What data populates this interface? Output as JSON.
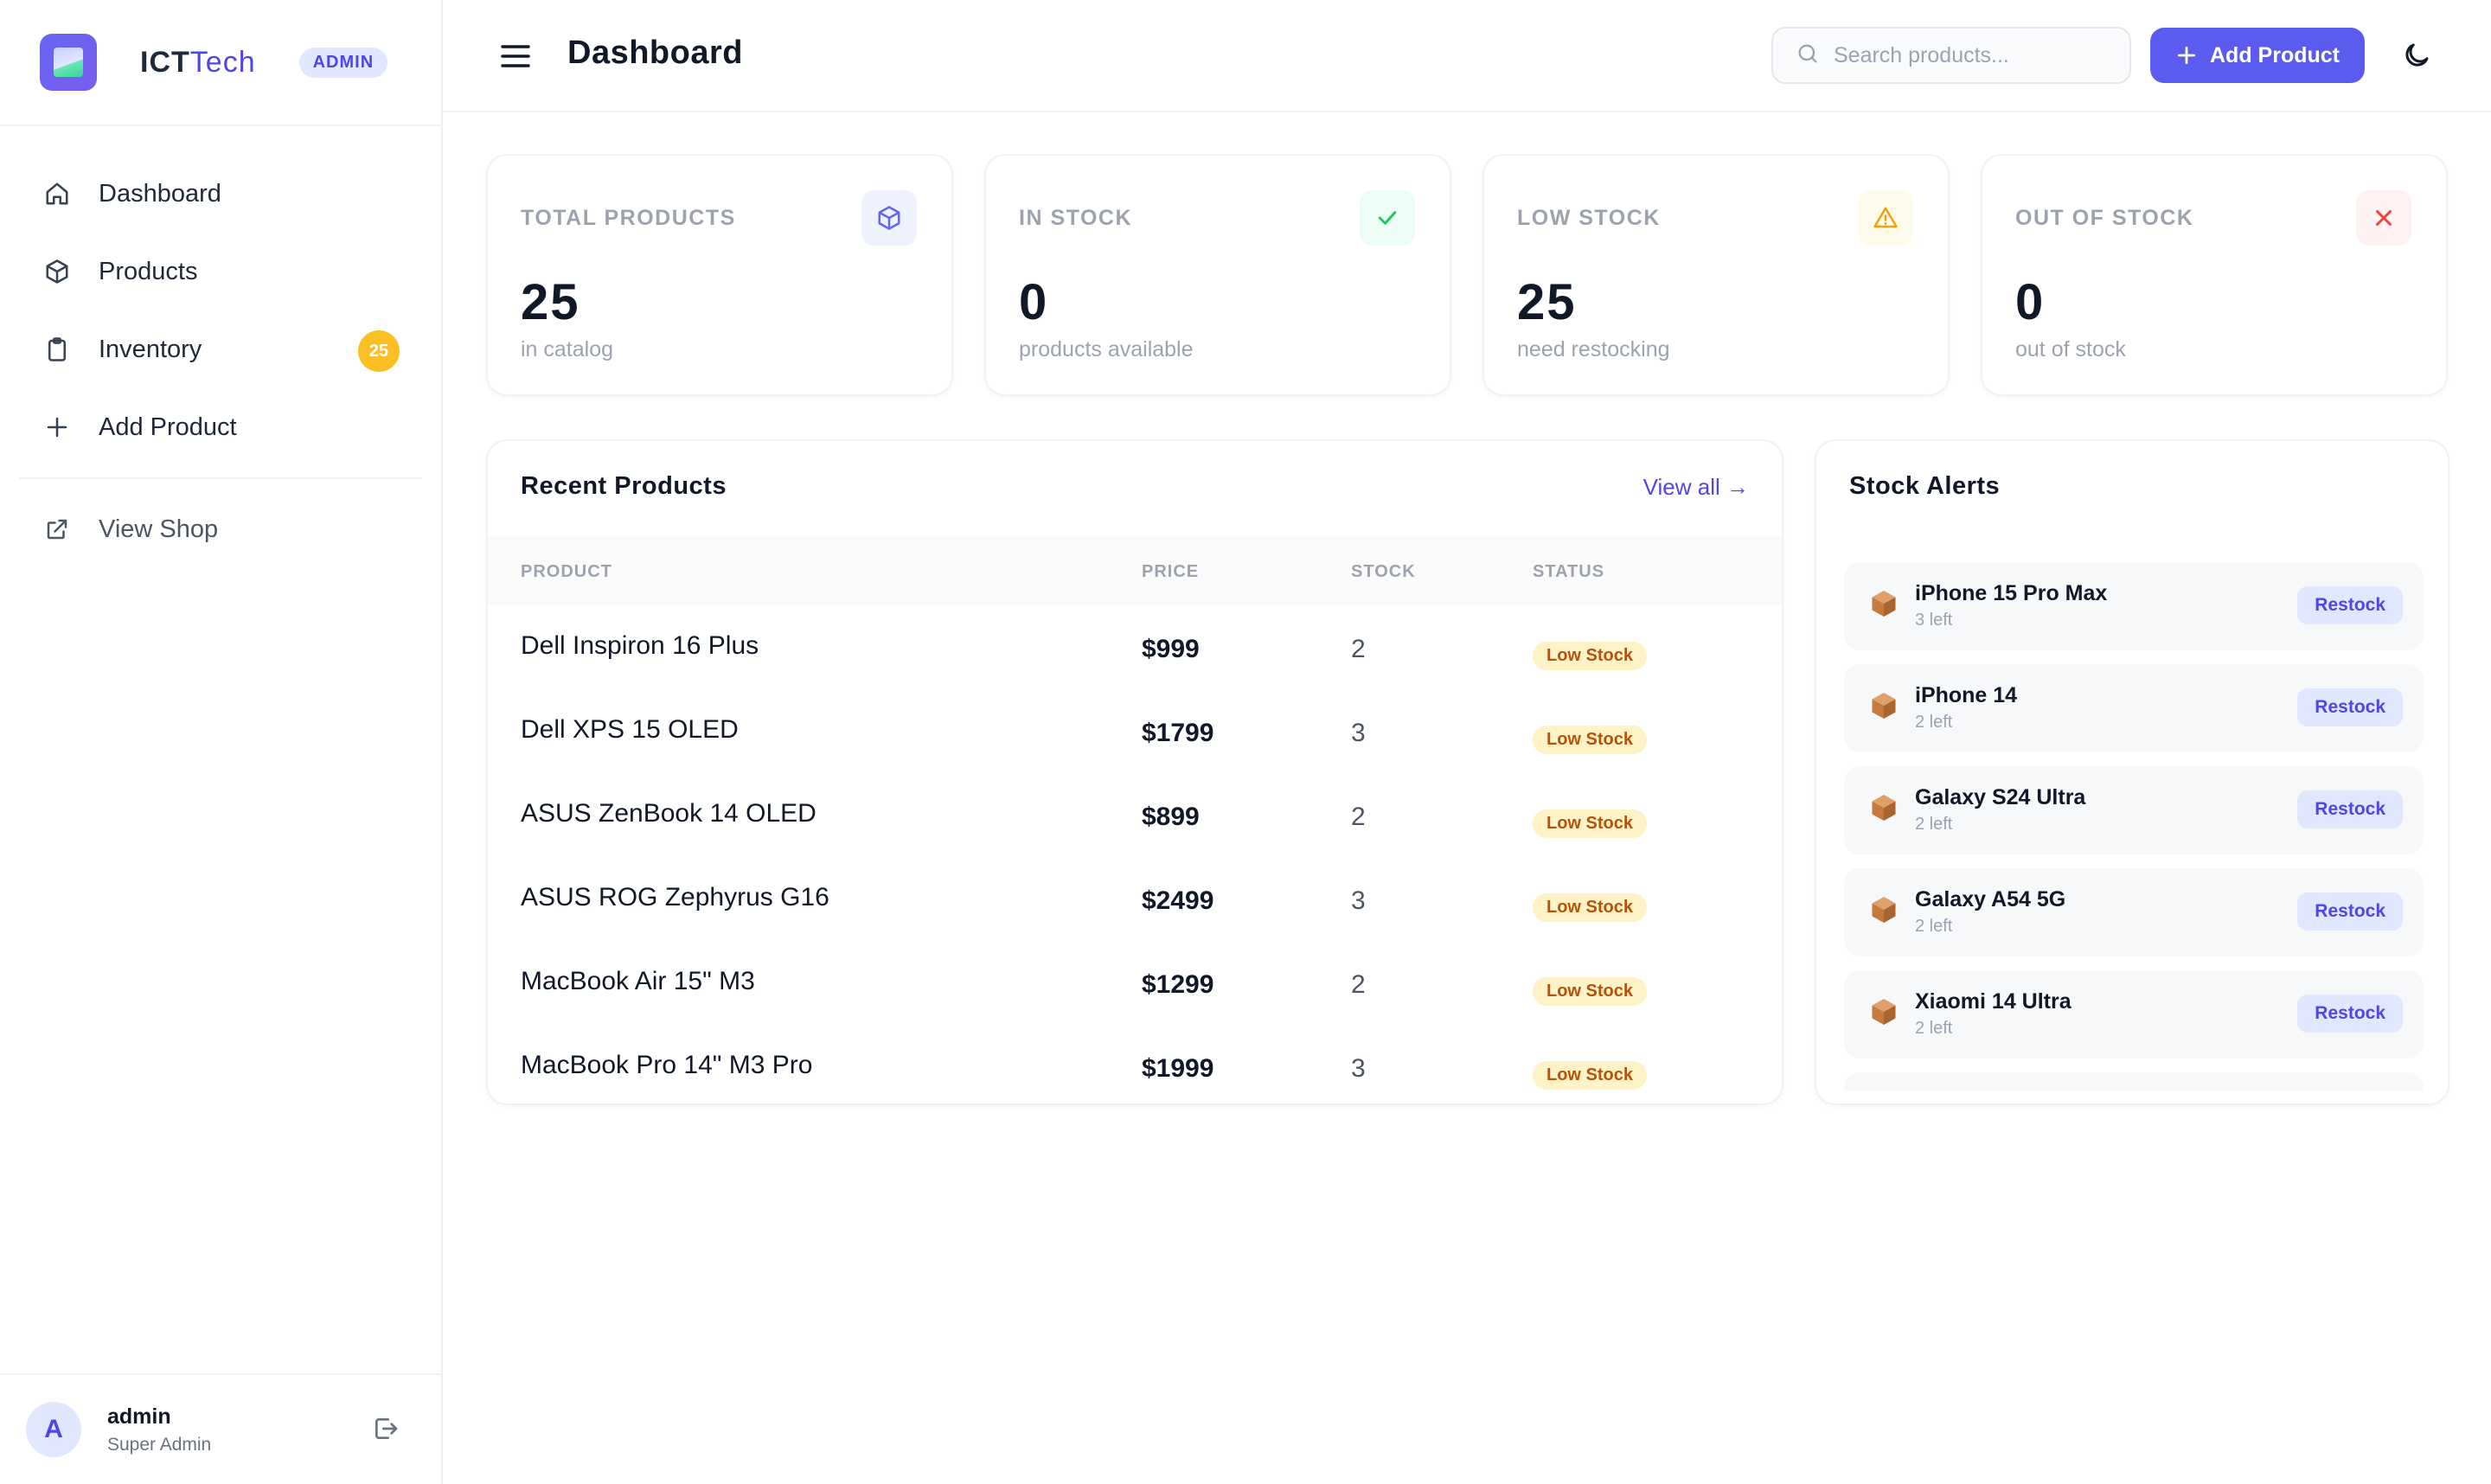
{
  "brand": {
    "name_part1": "ICT",
    "name_part2": "Tech",
    "badge": "ADMIN"
  },
  "sidebar": {
    "items": [
      {
        "label": "Dashboard",
        "icon": "home-icon"
      },
      {
        "label": "Products",
        "icon": "cube-icon"
      },
      {
        "label": "Inventory",
        "icon": "clipboard-icon",
        "count": "25"
      },
      {
        "label": "Add Product",
        "icon": "plus-icon"
      },
      {
        "label": "View Shop",
        "icon": "external-link-icon"
      }
    ]
  },
  "user": {
    "initial": "A",
    "name": "admin",
    "role": "Super Admin"
  },
  "header": {
    "title": "Dashboard",
    "search_placeholder": "Search products...",
    "add_label": "Add Product"
  },
  "stats": [
    {
      "label": "TOTAL PRODUCTS",
      "value": "25",
      "sub": "in catalog",
      "icon": "cube-icon",
      "color": "#6366f1",
      "bg": "#eef2ff"
    },
    {
      "label": "IN STOCK",
      "value": "0",
      "sub": "products available",
      "icon": "check-icon",
      "color": "#22c55e",
      "bg": "#ecfdf5"
    },
    {
      "label": "LOW STOCK",
      "value": "25",
      "sub": "need restocking",
      "icon": "warning-icon",
      "color": "#f59e0b",
      "bg": "#fffbeb"
    },
    {
      "label": "OUT OF STOCK",
      "value": "0",
      "sub": "out of stock",
      "icon": "x-icon",
      "color": "#ef4444",
      "bg": "#fef2f2"
    }
  ],
  "recent": {
    "title": "Recent Products",
    "view_all": "View all →",
    "columns": [
      "PRODUCT",
      "PRICE",
      "STOCK",
      "STATUS"
    ],
    "rows": [
      {
        "name": "Dell Inspiron 16 Plus",
        "price": "$999",
        "stock": "2",
        "status": "Low Stock"
      },
      {
        "name": "Dell XPS 15 OLED",
        "price": "$1799",
        "stock": "3",
        "status": "Low Stock"
      },
      {
        "name": "ASUS ZenBook 14 OLED",
        "price": "$899",
        "stock": "2",
        "status": "Low Stock"
      },
      {
        "name": "ASUS ROG Zephyrus G16",
        "price": "$2499",
        "stock": "3",
        "status": "Low Stock"
      },
      {
        "name": "MacBook Air 15\" M3",
        "price": "$1299",
        "stock": "2",
        "status": "Low Stock"
      },
      {
        "name": "MacBook Pro 14\" M3 Pro",
        "price": "$1999",
        "stock": "3",
        "status": "Low Stock"
      }
    ]
  },
  "alerts": {
    "title": "Stock Alerts",
    "items": [
      {
        "name": "iPhone 15 Pro Max",
        "left": "3 left",
        "action": "Restock"
      },
      {
        "name": "iPhone 14",
        "left": "2 left",
        "action": "Restock"
      },
      {
        "name": "Galaxy S24 Ultra",
        "left": "2 left",
        "action": "Restock"
      },
      {
        "name": "Galaxy A54 5G",
        "left": "2 left",
        "action": "Restock"
      },
      {
        "name": "Xiaomi 14 Ultra",
        "left": "2 left",
        "action": "Restock"
      }
    ]
  }
}
